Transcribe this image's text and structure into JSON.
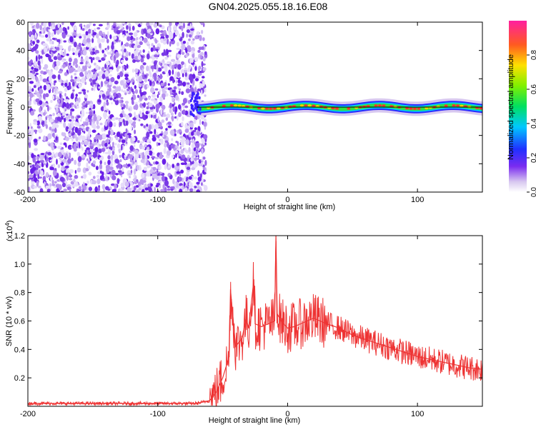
{
  "title": "GN04.2025.055.18.16.E08",
  "chart_data": [
    {
      "type": "heatmap",
      "xlabel": "Height of straight line (km)",
      "ylabel": "Frequency (Hz)",
      "xlim": [
        -200,
        150
      ],
      "ylim": [
        -60,
        60
      ],
      "xticks": [
        -200,
        -100,
        0,
        100
      ],
      "yticks": [
        -60,
        -40,
        -20,
        0,
        20,
        40,
        60
      ],
      "colorbar": {
        "label": "Normalized spectral amplitude",
        "range": [
          0,
          1
        ],
        "ticks": [
          "0.0",
          "0.2",
          "0.4",
          "0.6",
          "0.8"
        ]
      },
      "features": {
        "noise_region_x": [
          -200,
          -63
        ],
        "signal_center_freq": 0,
        "signal_start_x": -70
      }
    },
    {
      "type": "line",
      "xlabel": "Height of straight line (km)",
      "ylabel": "SNR (10 * v/v)",
      "multiplier": "(x10",
      "multiplier_exp": "4",
      "xlim": [
        -200,
        150
      ],
      "ylim": [
        0,
        1.2
      ],
      "xticks": [
        -200,
        -100,
        0,
        100
      ],
      "yticks": [
        "0.2",
        "0.4",
        "0.6",
        "0.8",
        "1.0",
        "1.2"
      ],
      "series": [
        {
          "color": "#ee3333",
          "x": [
            -200,
            -150,
            -100,
            -70,
            -60,
            -55,
            -50,
            -45,
            -44,
            -40,
            -35,
            -32,
            -30,
            -26,
            -25,
            -20,
            -15,
            -10,
            -9,
            -8,
            -5,
            0,
            5,
            10,
            15,
            20,
            25,
            30,
            40,
            50,
            60,
            70,
            80,
            90,
            100,
            110,
            120,
            130,
            140,
            150
          ],
          "y": [
            0.02,
            0.02,
            0.02,
            0.02,
            0.04,
            0.1,
            0.2,
            0.35,
            0.82,
            0.42,
            0.48,
            0.62,
            0.55,
            0.89,
            0.58,
            0.56,
            0.58,
            0.6,
            1.2,
            0.65,
            0.6,
            0.55,
            0.56,
            0.58,
            0.6,
            0.62,
            0.6,
            0.58,
            0.55,
            0.5,
            0.47,
            0.44,
            0.41,
            0.38,
            0.35,
            0.33,
            0.31,
            0.29,
            0.27,
            0.26
          ]
        }
      ]
    }
  ]
}
